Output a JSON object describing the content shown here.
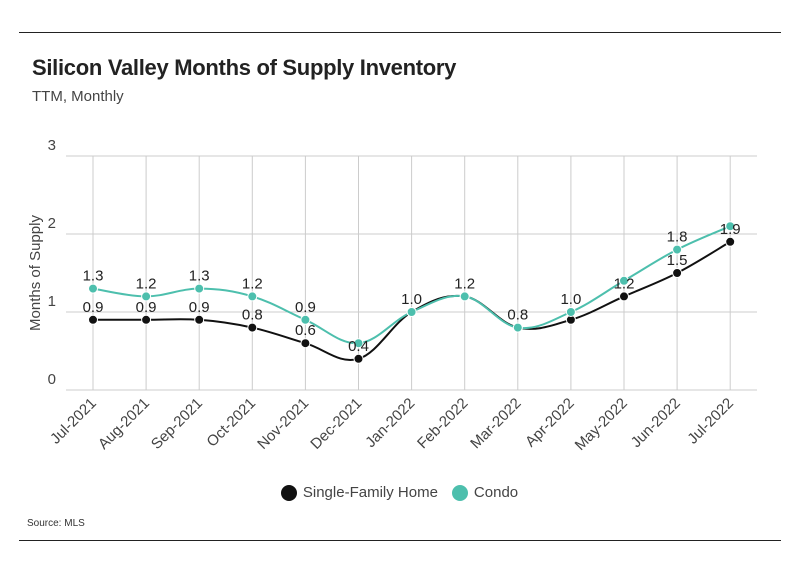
{
  "header": {
    "title": "Silicon Valley Months of Supply Inventory",
    "subtitle": "TTM, Monthly"
  },
  "source": "Source: MLS",
  "colors": {
    "single_family": "#111111",
    "condo": "#4dbfad",
    "grid": "#cccccc"
  },
  "chart_data": {
    "type": "line",
    "title": "Silicon Valley Months of Supply Inventory",
    "subtitle": "TTM, Monthly",
    "xlabel": "",
    "ylabel": "Months of Supply",
    "ylim": [
      0,
      3
    ],
    "yticks": [
      0,
      1,
      2,
      3
    ],
    "grid": true,
    "legend_position": "bottom",
    "categories": [
      "Jul-2021",
      "Aug-2021",
      "Sep-2021",
      "Oct-2021",
      "Nov-2021",
      "Dec-2021",
      "Jan-2022",
      "Feb-2022",
      "Mar-2022",
      "Apr-2022",
      "May-2022",
      "Jun-2022",
      "Jul-2022"
    ],
    "series": [
      {
        "name": "Single-Family Home",
        "color": "#111111",
        "values": [
          0.9,
          0.9,
          0.9,
          0.8,
          0.6,
          0.4,
          1.0,
          1.2,
          0.8,
          0.9,
          1.2,
          1.5,
          1.9
        ],
        "labels": [
          "0.9",
          "0.9",
          "0.9",
          "0.8",
          "0.6",
          "0.4",
          "1.0",
          "1.2",
          "0.8",
          "",
          "1.2",
          "1.5",
          "1.9"
        ]
      },
      {
        "name": "Condo",
        "color": "#4dbfad",
        "values": [
          1.3,
          1.2,
          1.3,
          1.2,
          0.9,
          0.6,
          1.0,
          1.2,
          0.8,
          1.0,
          1.4,
          1.8,
          2.1
        ],
        "labels": [
          "1.3",
          "1.2",
          "1.3",
          "1.2",
          "0.9",
          "",
          "",
          "",
          "",
          "1.0",
          "",
          "1.8",
          ""
        ]
      }
    ]
  }
}
